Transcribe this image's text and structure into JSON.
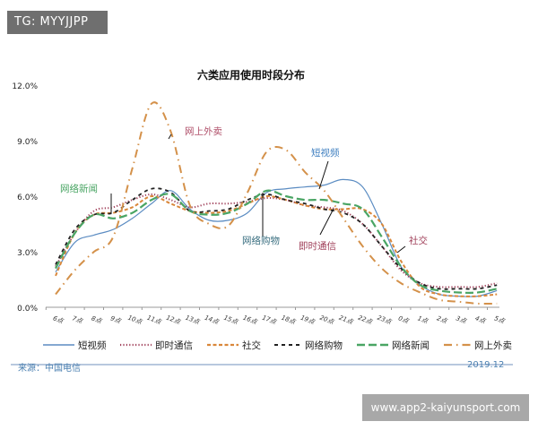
{
  "header_badge": "TG: MYYJJPP",
  "watermark": "www.app2-kaiyunsport.com",
  "footer": {
    "source": "来源：中国电信",
    "date": "2019.12"
  },
  "chart_data": {
    "type": "line",
    "title": "六类应用使用时段分布",
    "xlabel": "",
    "ylabel": "",
    "ylim": [
      0,
      12
    ],
    "yticks": [
      "0.0%",
      "3.0%",
      "6.0%",
      "9.0%",
      "12.0%"
    ],
    "grid": false,
    "legend": "bottom",
    "categories": [
      "6点",
      "7点",
      "8点",
      "9点",
      "10点",
      "11点",
      "12点",
      "13点",
      "14点",
      "15点",
      "16点",
      "17点",
      "18点",
      "19点",
      "20点",
      "21点",
      "22点",
      "23点",
      "0点",
      "1点",
      "2点",
      "3点",
      "4点",
      "5点"
    ],
    "series": [
      {
        "name": "短视频",
        "color": "#5b8cc2",
        "style": "solid",
        "values": [
          1.9,
          3.5,
          3.9,
          4.2,
          4.8,
          5.6,
          6.3,
          5.3,
          4.7,
          4.7,
          5.1,
          6.2,
          6.4,
          6.5,
          6.6,
          6.9,
          6.5,
          4.5,
          2.2,
          1.2,
          0.7,
          0.6,
          0.6,
          0.9
        ]
      },
      {
        "name": "即时通信",
        "color": "#a0405a",
        "style": "dotted",
        "values": [
          2.2,
          4.0,
          5.2,
          5.4,
          5.8,
          6.1,
          5.8,
          5.4,
          5.6,
          5.6,
          5.7,
          5.9,
          5.8,
          5.5,
          5.4,
          5.2,
          4.5,
          3.3,
          2.0,
          1.3,
          1.1,
          1.1,
          1.1,
          1.3
        ]
      },
      {
        "name": "社交",
        "color": "#d9873a",
        "style": "dashed",
        "values": [
          1.7,
          4.0,
          5.0,
          5.1,
          5.4,
          6.0,
          5.6,
          5.2,
          5.1,
          5.2,
          5.6,
          6.0,
          5.8,
          5.5,
          5.3,
          5.3,
          5.3,
          4.5,
          2.5,
          1.1,
          0.7,
          0.6,
          0.6,
          0.7
        ]
      },
      {
        "name": "网络购物",
        "color": "#222222",
        "style": "dashed-wide",
        "values": [
          2.3,
          4.2,
          5.0,
          5.1,
          5.8,
          6.4,
          6.2,
          5.2,
          5.2,
          5.3,
          5.8,
          6.1,
          5.8,
          5.6,
          5.3,
          5.1,
          4.5,
          3.3,
          2.1,
          1.3,
          1.0,
          1.0,
          1.0,
          1.2
        ]
      },
      {
        "name": "网络新闻",
        "color": "#4aa564",
        "style": "long-dash",
        "values": [
          2.1,
          4.0,
          5.0,
          4.8,
          5.1,
          5.8,
          6.1,
          5.2,
          5.0,
          5.1,
          5.6,
          6.3,
          6.0,
          5.8,
          5.8,
          5.6,
          5.3,
          3.8,
          2.2,
          1.2,
          0.9,
          0.8,
          0.8,
          1.0
        ]
      },
      {
        "name": "网上外卖",
        "color": "#d4914a",
        "style": "dash-dot",
        "values": [
          0.7,
          2.0,
          3.0,
          3.8,
          7.5,
          11.0,
          9.5,
          5.5,
          4.5,
          4.4,
          6.2,
          8.4,
          8.5,
          7.3,
          6.3,
          4.8,
          3.3,
          2.1,
          1.3,
          0.8,
          0.4,
          0.3,
          0.2,
          0.2
        ]
      }
    ],
    "annotations": [
      {
        "text": "网上外卖",
        "color": "#b0506a"
      },
      {
        "text": "短视频",
        "color": "#3f7fc0"
      },
      {
        "text": "网络新闻",
        "color": "#4aa564"
      },
      {
        "text": "网络购物",
        "color": "#3a6f80"
      },
      {
        "text": "即时通信",
        "color": "#a0405a"
      },
      {
        "text": "社交",
        "color": "#a0405a"
      }
    ]
  }
}
